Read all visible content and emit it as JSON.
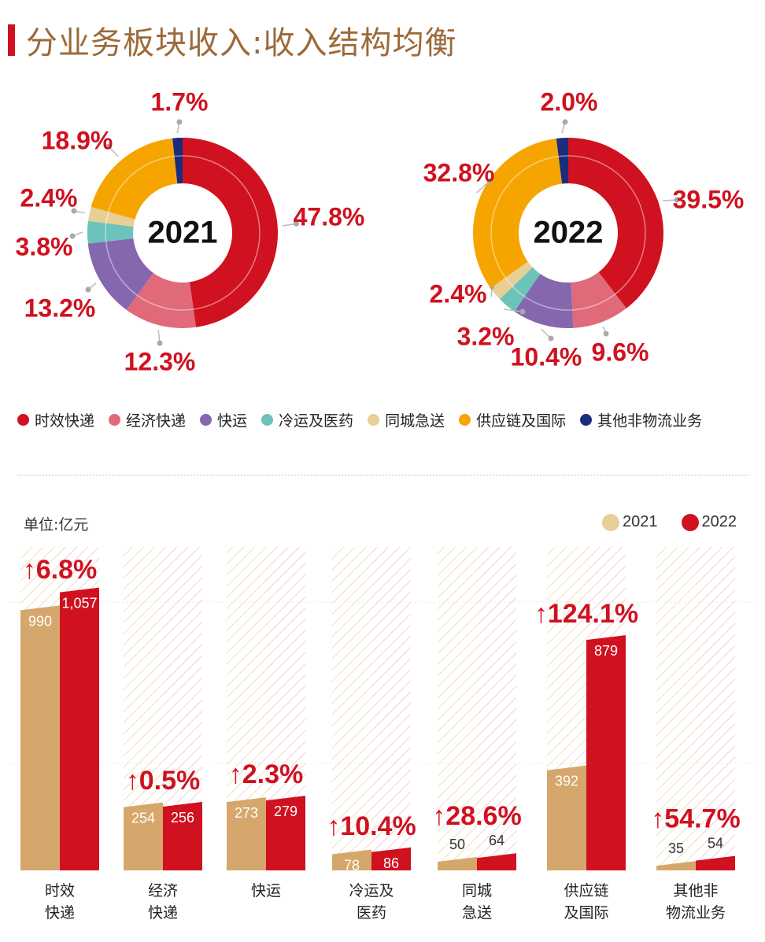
{
  "header": {
    "title": "分业务板块收入:收入结构均衡"
  },
  "legend": {
    "items": [
      {
        "label": "时效快递",
        "color": "#d0111f"
      },
      {
        "label": "经济快递",
        "color": "#e06a7a"
      },
      {
        "label": "快运",
        "color": "#8467ad"
      },
      {
        "label": "冷运及医药",
        "color": "#6cc3b9"
      },
      {
        "label": "同城急送",
        "color": "#e7cf96"
      },
      {
        "label": "供应链及国际",
        "color": "#f6a500"
      },
      {
        "label": "其他非物流业务",
        "color": "#1a2c7c"
      }
    ]
  },
  "bars_meta": {
    "unit": "单位:亿元",
    "legend_2021": "2021",
    "legend_2022": "2022"
  },
  "chart_data": [
    {
      "type": "pie",
      "center_label": "2021",
      "labels": [
        "时效快递",
        "经济快递",
        "快运",
        "冷运及医药",
        "同城急送",
        "供应链及国际",
        "其他非物流业务"
      ],
      "values": [
        47.8,
        12.3,
        13.2,
        3.8,
        2.4,
        18.9,
        1.7
      ],
      "value_labels": [
        "47.8%",
        "12.3%",
        "13.2%",
        "3.8%",
        "2.4%",
        "18.9%",
        "1.7%"
      ],
      "colors": [
        "#d0111f",
        "#e06a7a",
        "#8467ad",
        "#6cc3b9",
        "#e7cf96",
        "#f6a500",
        "#1a2c7c"
      ]
    },
    {
      "type": "pie",
      "center_label": "2022",
      "labels": [
        "时效快递",
        "经济快递",
        "快运",
        "冷运及医药",
        "同城急送",
        "供应链及国际",
        "其他非物流业务"
      ],
      "values": [
        39.5,
        9.6,
        10.4,
        3.2,
        2.4,
        32.8,
        2.0
      ],
      "value_labels": [
        "39.5%",
        "9.6%",
        "10.4%",
        "3.2%",
        "2.4%",
        "32.8%",
        "2.0%"
      ],
      "colors": [
        "#d0111f",
        "#e06a7a",
        "#8467ad",
        "#6cc3b9",
        "#e7cf96",
        "#f6a500",
        "#1a2c7c"
      ]
    },
    {
      "type": "bar",
      "categories": [
        [
          "时效",
          "快递"
        ],
        [
          "经济",
          "快递"
        ],
        [
          "快运"
        ],
        [
          "冷运及",
          "医药"
        ],
        [
          "同城",
          "急送"
        ],
        [
          "供应链",
          "及国际"
        ],
        [
          "其他非",
          "物流业务"
        ]
      ],
      "series": [
        {
          "name": "2021",
          "values": [
            990,
            254,
            273,
            78,
            50,
            392,
            35
          ],
          "value_labels": [
            "990",
            "254",
            "273",
            "78",
            "50",
            "392",
            "35"
          ],
          "color": "#d6a76c"
        },
        {
          "name": "2022",
          "values": [
            1057,
            256,
            279,
            86,
            64,
            879,
            54
          ],
          "value_labels": [
            "1,057",
            "256",
            "279",
            "86",
            "64",
            "879",
            "54"
          ],
          "color": "#d0111f"
        }
      ],
      "growth_labels": [
        "↑6.8%",
        "↑0.5%",
        "↑2.3%",
        "↑10.4%",
        "↑28.6%",
        "↑124.1%",
        "↑54.7%"
      ]
    }
  ]
}
